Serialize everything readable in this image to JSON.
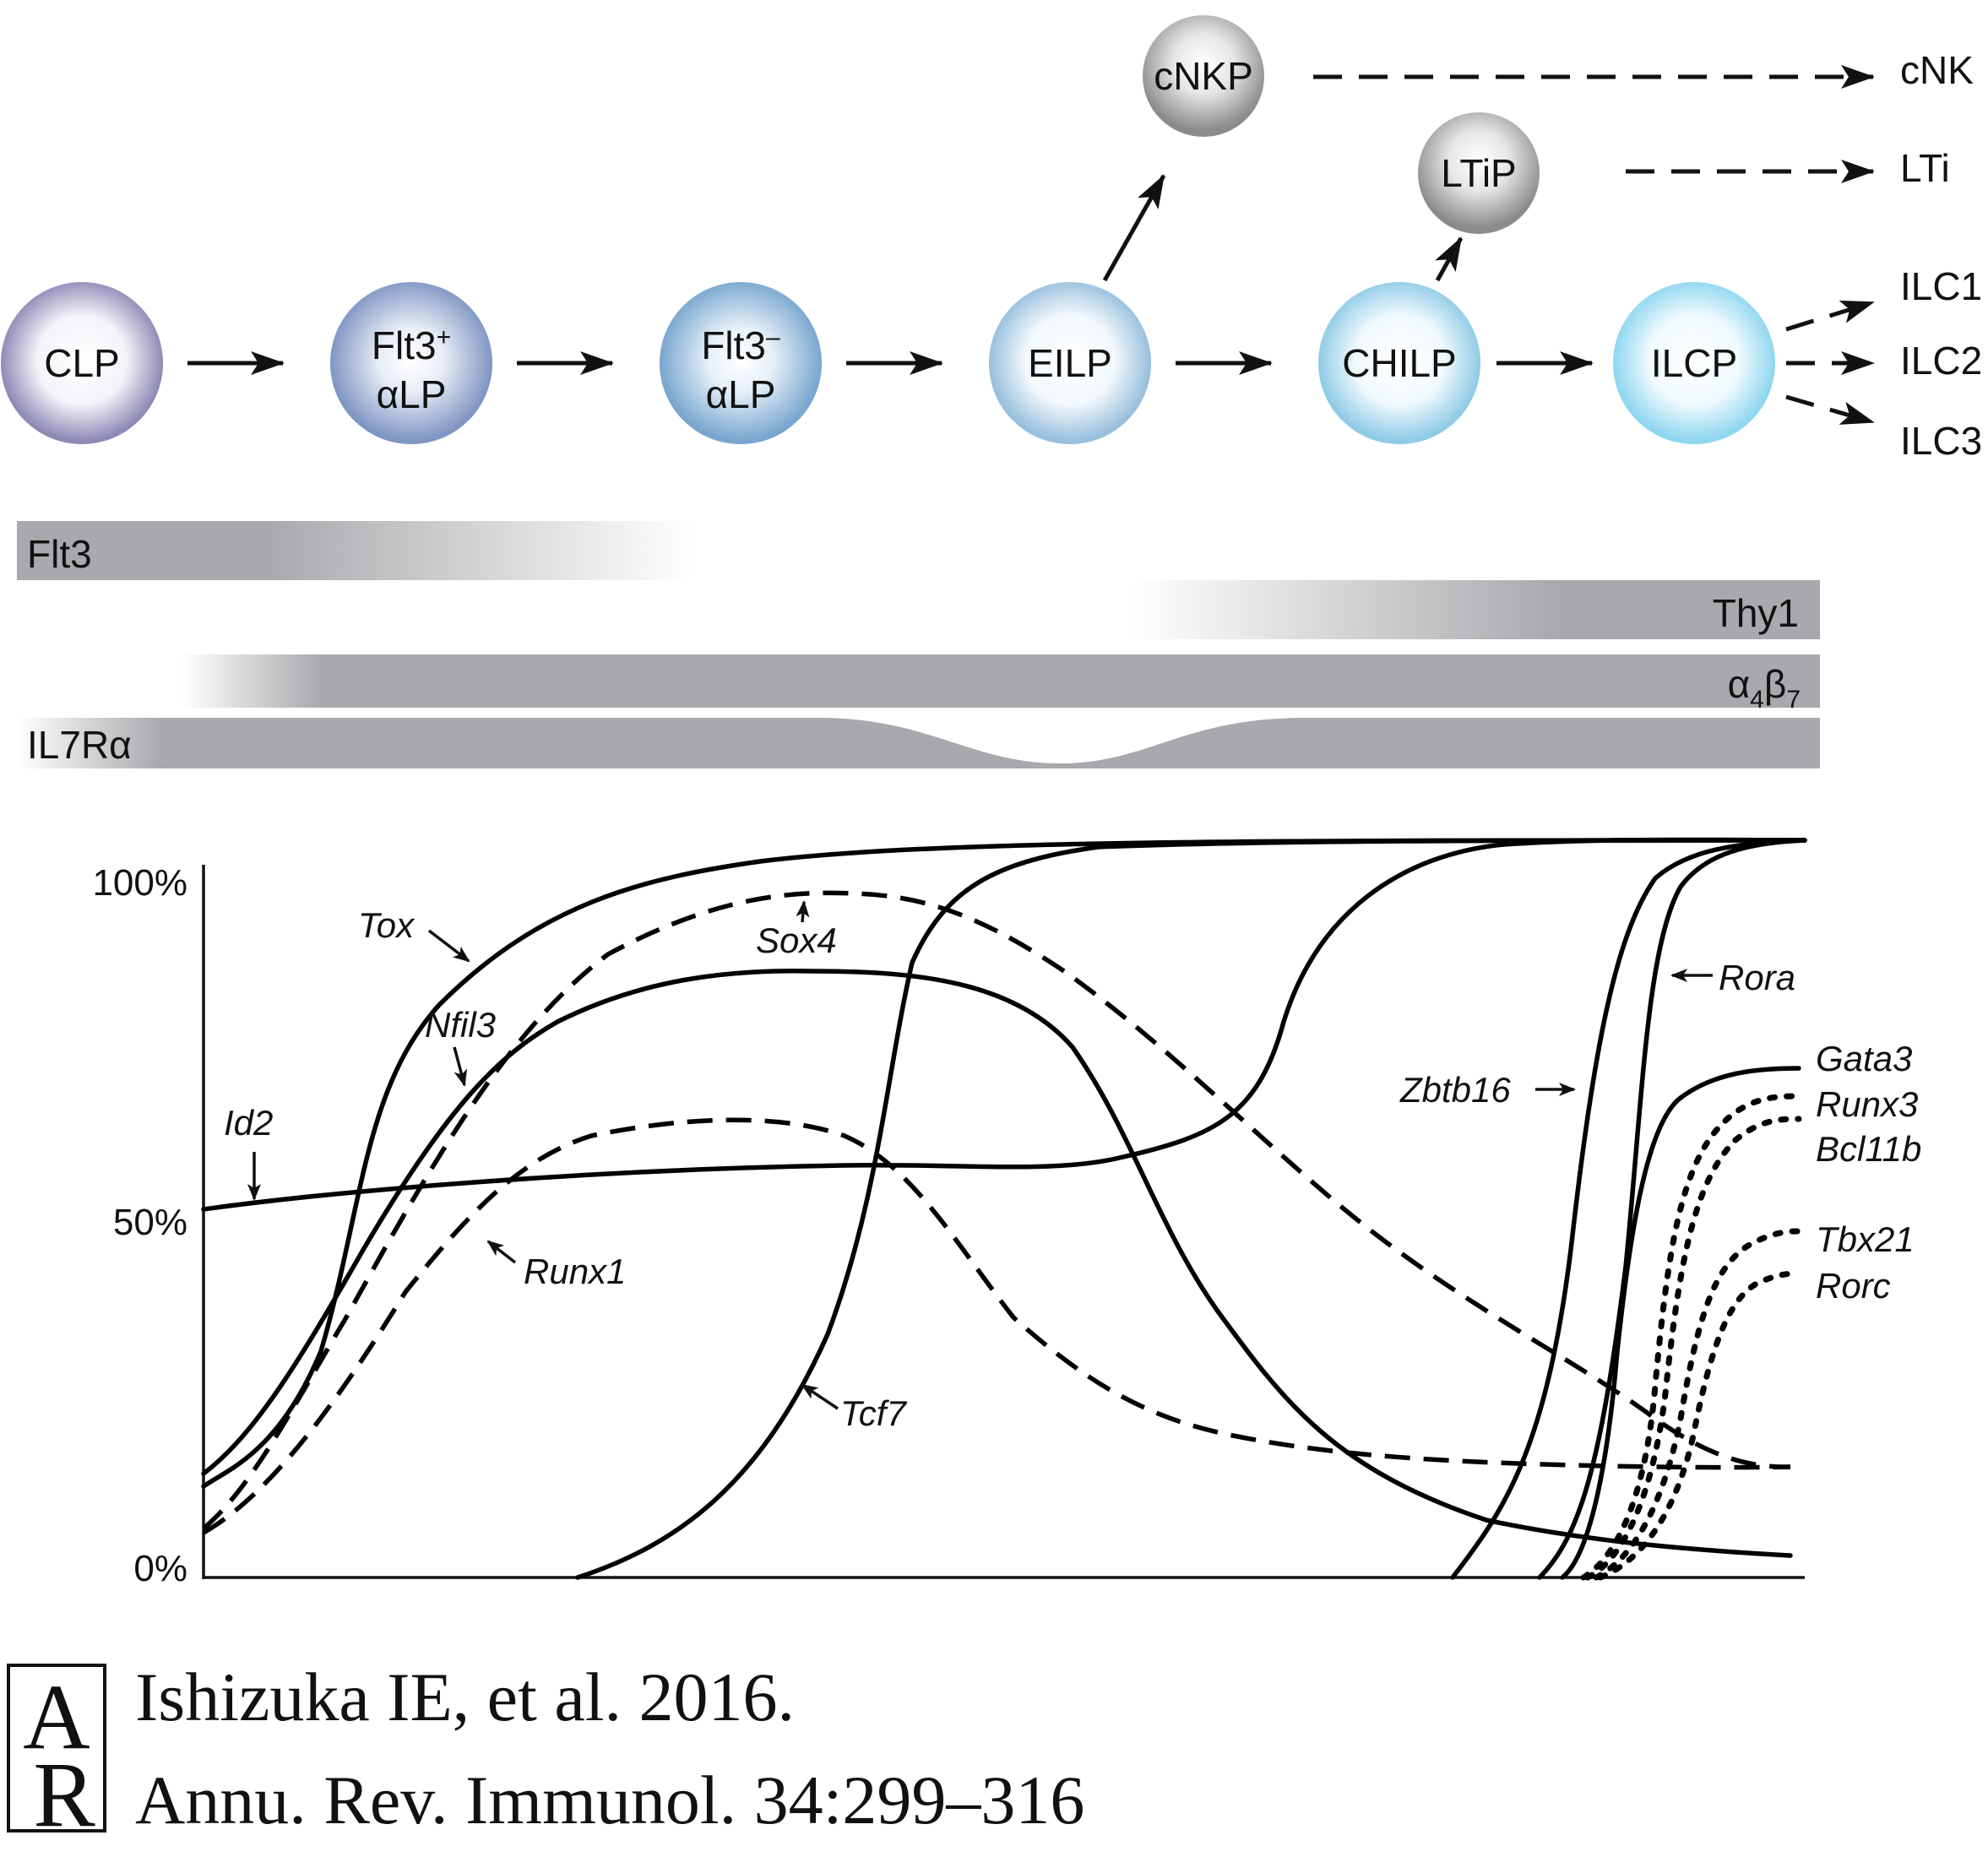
{
  "cells": [
    {
      "id": "clp",
      "label": "CLP",
      "color": "#8e8ab6"
    },
    {
      "id": "flt3pos",
      "label_main": "Flt3",
      "label_sup": "+",
      "label_line2": "αLP",
      "color": "#7f96c3"
    },
    {
      "id": "flt3neg",
      "label_main": "Flt3",
      "label_sup": "–",
      "label_line2": "αLP",
      "color": "#78a6cf"
    },
    {
      "id": "eilp",
      "label": "EILP",
      "color": "#98bfdd"
    },
    {
      "id": "chilp",
      "label": "CHILP",
      "color": "#8fcbe6"
    },
    {
      "id": "ilcp",
      "label": "ILCP",
      "color": "#8fd6f0"
    },
    {
      "id": "cnkp",
      "label": "cNKP",
      "color": "#8b8b8b"
    },
    {
      "id": "ltip",
      "label": "LTiP",
      "color": "#8b8b8b"
    }
  ],
  "fates": {
    "cnk": "cNK",
    "lti": "LTi",
    "ilc1": "ILC1",
    "ilc2": "ILC2",
    "ilc3": "ILC3"
  },
  "markers": {
    "flt3": "Flt3",
    "thy1": "Thy1",
    "a4b7_alpha": "α",
    "a4b7_sub1": "4",
    "a4b7_beta": "β",
    "a4b7_sub2": "7",
    "il7ra": "IL7Rα",
    "bar_color": "#a7a9ac"
  },
  "axis": {
    "tick_100": "100%",
    "tick_50": "50%",
    "tick_0": "0%"
  },
  "genes": {
    "tox": "Tox",
    "sox4": "Sox4",
    "nfil3": "Nfil3",
    "id2": "Id2",
    "runx1": "Runx1",
    "tcf7": "Tcf7",
    "zbtb16": "Zbtb16",
    "rora": "Rora",
    "gata3": "Gata3",
    "runx3": "Runx3",
    "bcl11b": "Bcl11b",
    "tbx21": "Tbx21",
    "rorc": "Rorc"
  },
  "citation": {
    "logo_a": "A",
    "logo_r": "R",
    "line1": "Ishizuka IE, et al. 2016.",
    "line2": "Annu. Rev. Immunol. 34:299–316"
  }
}
